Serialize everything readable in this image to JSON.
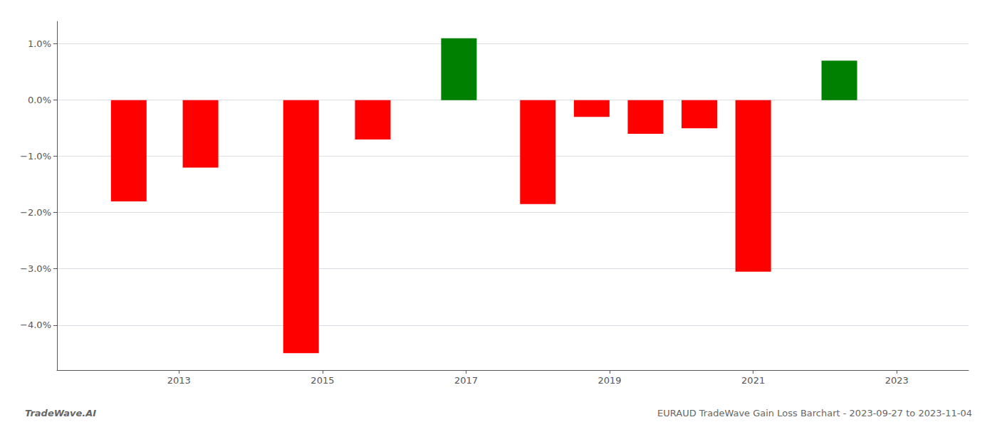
{
  "chart_data": {
    "type": "bar",
    "x": [
      2012.3,
      2013.3,
      2014.7,
      2015.7,
      2016.9,
      2018.0,
      2018.75,
      2019.5,
      2020.25,
      2021.0,
      2022.2
    ],
    "values": [
      -1.8,
      -1.2,
      -4.5,
      -0.7,
      1.1,
      -1.85,
      -0.3,
      -0.6,
      -0.5,
      -3.05,
      0.7
    ],
    "colors": [
      "#ff0000",
      "#ff0000",
      "#ff0000",
      "#ff0000",
      "#008000",
      "#ff0000",
      "#ff0000",
      "#ff0000",
      "#ff0000",
      "#ff0000",
      "#008000"
    ],
    "xlim": [
      2011.3,
      2024.0
    ],
    "xticks": [
      2013,
      2015,
      2017,
      2019,
      2021,
      2023
    ],
    "ylim": [
      -4.8,
      1.4
    ],
    "yticks": [
      {
        "value": -4.0,
        "label": "−4.0%"
      },
      {
        "value": -3.0,
        "label": "−3.0%"
      },
      {
        "value": -2.0,
        "label": "−2.0%"
      },
      {
        "value": -1.0,
        "label": "−1.0%"
      },
      {
        "value": 0.0,
        "label": "0.0%"
      },
      {
        "value": 1.0,
        "label": "1.0%"
      }
    ],
    "grid": true,
    "annotations": [
      "TradeWave.AI",
      "EURAUD TradeWave Gain Loss Barchart - 2023-09-27 to 2023-11-04"
    ]
  }
}
